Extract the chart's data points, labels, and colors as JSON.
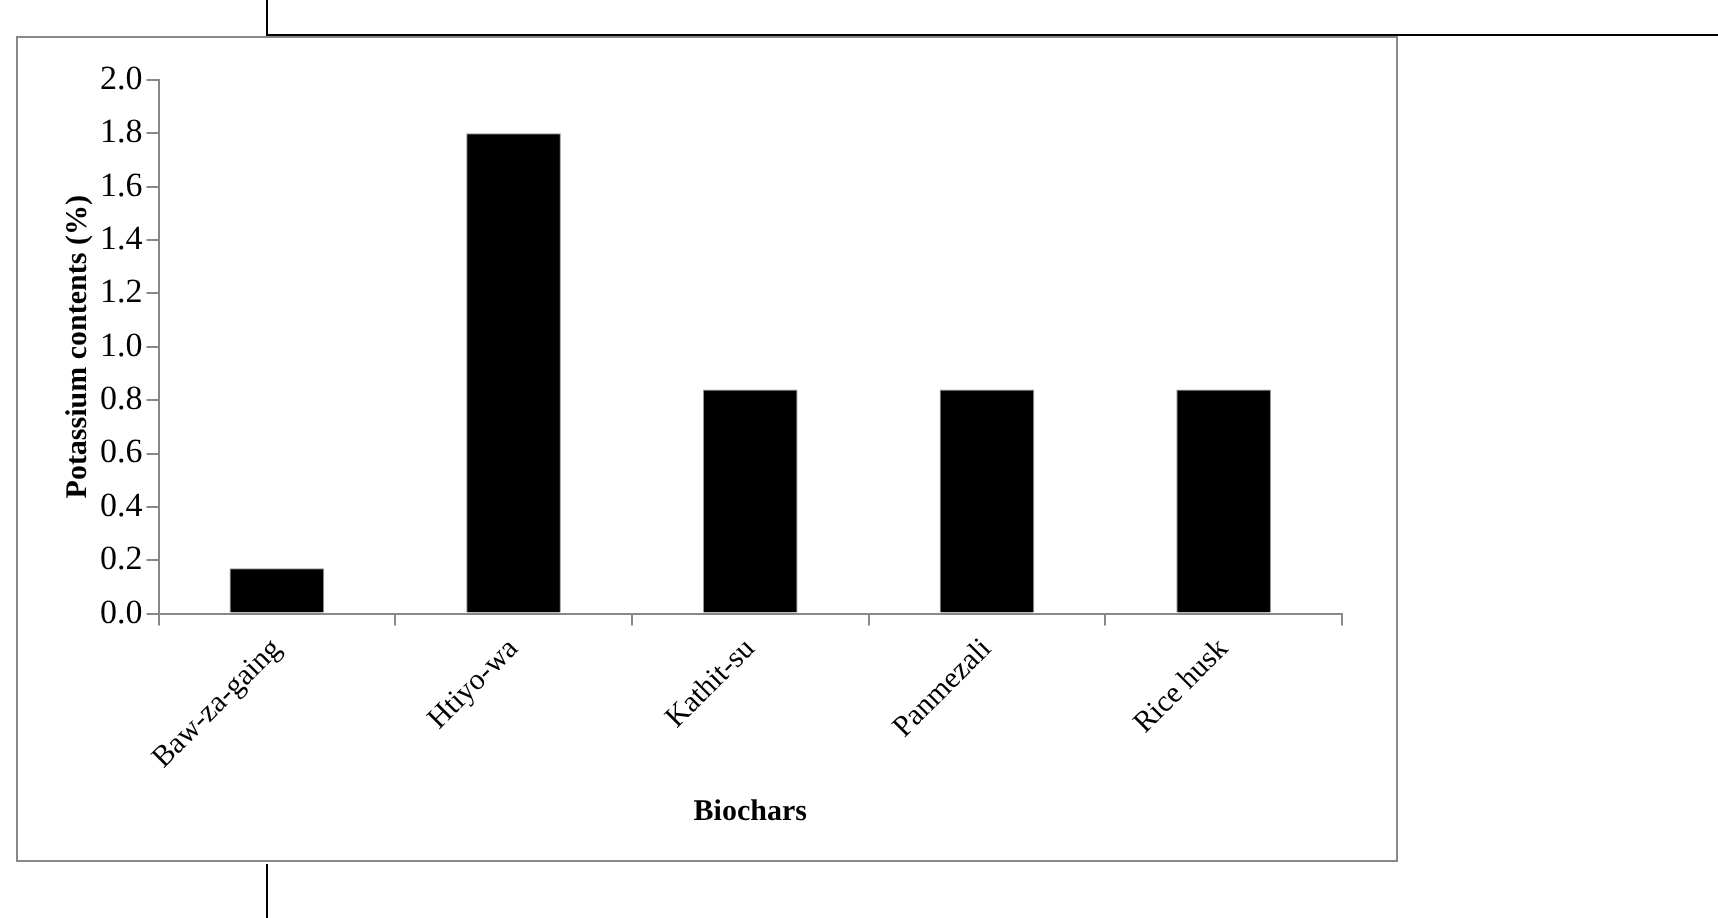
{
  "chart_data": {
    "type": "bar",
    "xlabel": "Biochars",
    "ylabel": "Potassium contents (%)",
    "categories": [
      "Baw-za-gaing",
      "Htiyo-wa",
      "Kathit-su",
      "Panmezali",
      "Rice husk"
    ],
    "values": [
      0.17,
      1.8,
      0.84,
      0.84,
      0.84
    ],
    "color": "#000000",
    "ylim": [
      0,
      2
    ],
    "yticks": [
      "0.0",
      0.2,
      0.4,
      0.6,
      0.8,
      "1.0",
      1.2,
      1.4,
      1.6,
      1.8,
      "2.0"
    ],
    "grid": false,
    "legend": false
  }
}
